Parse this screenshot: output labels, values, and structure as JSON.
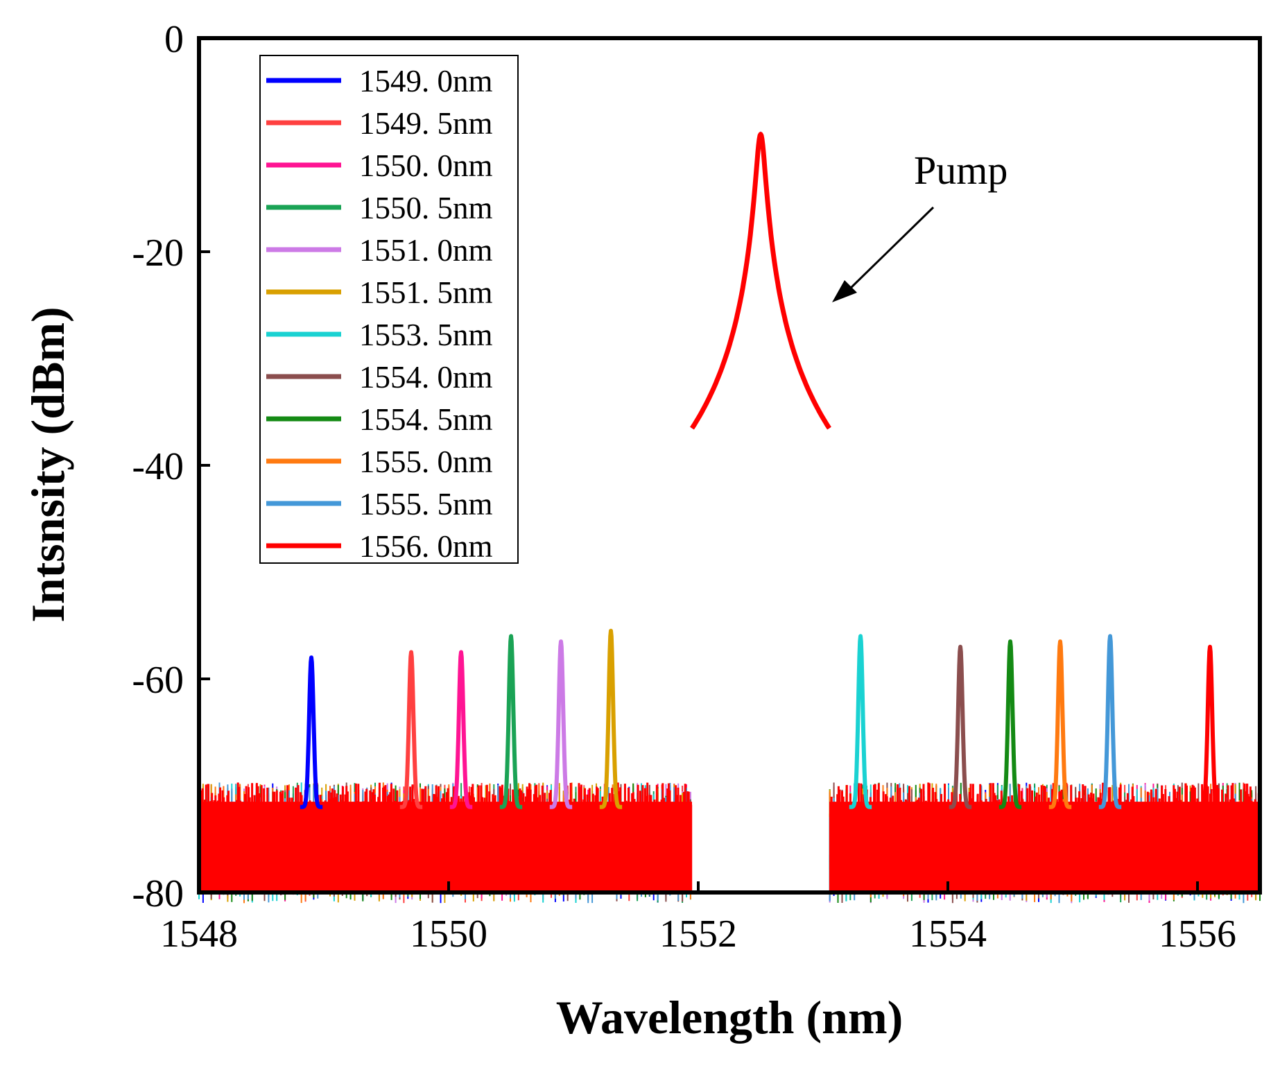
{
  "chart_data": {
    "type": "line",
    "title": "",
    "xlabel": "Wavelength (nm)",
    "ylabel": "Intsnsity (dBm)",
    "xlim": [
      1548,
      1556.5
    ],
    "ylim": [
      -80,
      0
    ],
    "x_ticks": [
      1548,
      1550,
      1552,
      1554,
      1556
    ],
    "x_tick_labels": [
      "1548",
      "1550",
      "1552",
      "1554",
      "1556"
    ],
    "y_ticks": [
      0,
      -20,
      -40,
      -60,
      -80
    ],
    "y_tick_labels": [
      "0",
      "-20",
      "-40",
      "-60",
      "-80"
    ],
    "grid": false,
    "legend_position": "top-left",
    "noise_floor_dbm": -72,
    "pump": {
      "wavelength": 1552.5,
      "peak": -9
    },
    "series": [
      {
        "name": "1549. 0nm",
        "color": "#0000ff",
        "peak_wavelength": 1548.9,
        "peak_value": -58
      },
      {
        "name": "1549. 5nm",
        "color": "#ff4040",
        "peak_wavelength": 1549.7,
        "peak_value": -57.5
      },
      {
        "name": "1550. 0nm",
        "color": "#ff1493",
        "peak_wavelength": 1550.1,
        "peak_value": -57.5
      },
      {
        "name": "1550. 5nm",
        "color": "#1aa355",
        "peak_wavelength": 1550.5,
        "peak_value": -56
      },
      {
        "name": "1551. 0nm",
        "color": "#cc7ae6",
        "peak_wavelength": 1550.9,
        "peak_value": -56.5
      },
      {
        "name": "1551. 5nm",
        "color": "#d9a000",
        "peak_wavelength": 1551.3,
        "peak_value": -55.5
      },
      {
        "name": "1553. 5nm",
        "color": "#1ad2d2",
        "peak_wavelength": 1553.3,
        "peak_value": -56
      },
      {
        "name": "1554. 0nm",
        "color": "#8b4e4e",
        "peak_wavelength": 1554.1,
        "peak_value": -57
      },
      {
        "name": "1554. 5nm",
        "color": "#148a14",
        "peak_wavelength": 1554.5,
        "peak_value": -56.5
      },
      {
        "name": "1555. 0nm",
        "color": "#ff7a10",
        "peak_wavelength": 1554.9,
        "peak_value": -56.5
      },
      {
        "name": "1555. 5nm",
        "color": "#4498d8",
        "peak_wavelength": 1555.3,
        "peak_value": -56
      },
      {
        "name": "1556. 0nm",
        "color": "#ff0000",
        "peak_wavelength": 1556.1,
        "peak_value": -57
      }
    ],
    "annotations": [
      {
        "text": "Pump",
        "points_to_wavelength": 1552.5
      }
    ]
  }
}
